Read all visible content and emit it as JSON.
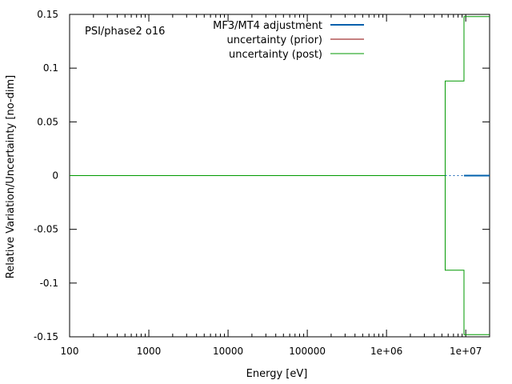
{
  "chart_data": {
    "type": "line",
    "title": "",
    "annotation": "PSI/phase2 o16",
    "xlabel": "Energy [eV]",
    "ylabel": "Relative Variation/Uncertainty [no-dim]",
    "xscale": "log",
    "xlim": [
      100,
      20000000
    ],
    "ylim": [
      -0.15,
      0.15
    ],
    "grid": false,
    "legend_position": "top-right",
    "x_ticks": [
      {
        "value": 100,
        "label": "100"
      },
      {
        "value": 1000,
        "label": "1000"
      },
      {
        "value": 10000,
        "label": "10000"
      },
      {
        "value": 100000,
        "label": "100000"
      },
      {
        "value": 1000000,
        "label": "1e+06"
      },
      {
        "value": 10000000,
        "label": "1e+07"
      }
    ],
    "y_ticks": [
      {
        "value": 0.15,
        "label": "0.15"
      },
      {
        "value": 0.1,
        "label": "0.1"
      },
      {
        "value": 0.05,
        "label": "0.05"
      },
      {
        "value": 0,
        "label": "0"
      },
      {
        "value": -0.05,
        "label": "-0.05"
      },
      {
        "value": -0.1,
        "label": "-0.1"
      },
      {
        "value": -0.15,
        "label": "-0.15"
      }
    ],
    "series": [
      {
        "name": "MF3/MT4 adjustment",
        "color": "#0060ad",
        "style": "solid-thick",
        "x": [
          100,
          5500000,
          9500000,
          20000000
        ],
        "y": [
          0,
          0,
          0,
          0
        ]
      },
      {
        "name": "uncertainty (prior)",
        "color": "#8b0000",
        "style": "solid",
        "x": [
          100,
          20000000
        ],
        "y": [
          0,
          0
        ]
      },
      {
        "name": "uncertainty (post)",
        "color": "#009900",
        "style": "step",
        "segments": [
          {
            "x": [
              100,
              5500000,
              5500000,
              9500000,
              9500000,
              20000000
            ],
            "y": [
              0,
              0,
              0.088,
              0.088,
              0.148,
              0.148
            ]
          },
          {
            "x": [
              100,
              5500000,
              5500000,
              9500000,
              9500000,
              20000000
            ],
            "y": [
              0,
              0,
              -0.088,
              -0.088,
              -0.148,
              -0.148
            ]
          }
        ]
      }
    ]
  }
}
